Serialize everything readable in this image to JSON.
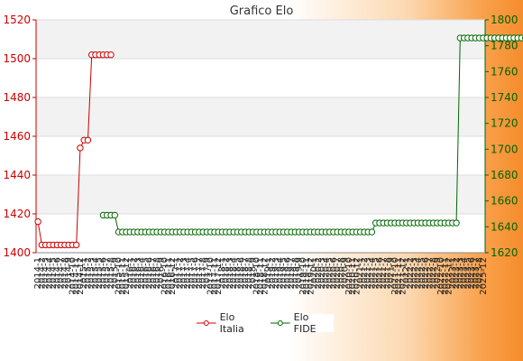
{
  "chart_data": {
    "type": "line",
    "title": "Grafico Elo",
    "xlabel": "",
    "ylabel": "",
    "ylim_left": [
      1400,
      1520
    ],
    "ylim_right": [
      1620,
      1800
    ],
    "yticks_left": [
      "1400",
      "1420",
      "1440",
      "1460",
      "1480",
      "1500",
      "1520"
    ],
    "yticks_right": [
      "1620",
      "1640",
      "1660",
      "1680",
      "1700",
      "1720",
      "1740",
      "1760",
      "1780",
      "1800"
    ],
    "grid": true,
    "legend_position": "bottom",
    "x_first_label": "2014-1",
    "x_last_label": "2025-12",
    "x_count": 117,
    "series": [
      {
        "name": "Elo Italia",
        "axis": "left",
        "color": "#cc0000",
        "start_index": 0,
        "values": [
          1416,
          1404,
          1404,
          1404,
          1404,
          1404,
          1404,
          1404,
          1404,
          1404,
          1404,
          1454,
          1458,
          1458,
          1502,
          1502,
          1502,
          1502,
          1502,
          1502
        ]
      },
      {
        "name": "Elo FIDE",
        "axis": "right",
        "color": "#006600",
        "start_index": 17,
        "values": [
          1649,
          1649,
          1649,
          1649,
          1636,
          1636,
          1636,
          1636,
          1636,
          1636,
          1636,
          1636,
          1636,
          1636,
          1636,
          1636,
          1636,
          1636,
          1636,
          1636,
          1636,
          1636,
          1636,
          1636,
          1636,
          1636,
          1636,
          1636,
          1636,
          1636,
          1636,
          1636,
          1636,
          1636,
          1636,
          1636,
          1636,
          1636,
          1636,
          1636,
          1636,
          1636,
          1636,
          1636,
          1636,
          1636,
          1636,
          1636,
          1636,
          1636,
          1636,
          1636,
          1636,
          1636,
          1636,
          1636,
          1636,
          1636,
          1636,
          1636,
          1636,
          1636,
          1636,
          1636,
          1636,
          1636,
          1636,
          1636,
          1636,
          1636,
          1636,
          1643,
          1643,
          1643,
          1643,
          1643,
          1643,
          1643,
          1643,
          1643,
          1643,
          1643,
          1643,
          1643,
          1643,
          1643,
          1643,
          1643,
          1643,
          1643,
          1643,
          1643,
          1643,
          1786,
          1786,
          1786,
          1786,
          1786,
          1786,
          1786,
          1786,
          1786,
          1786,
          1786,
          1786,
          1786,
          1786,
          1786,
          1786,
          1786,
          1786,
          1786,
          1786,
          1786,
          1786,
          1786,
          1786
        ]
      }
    ]
  }
}
